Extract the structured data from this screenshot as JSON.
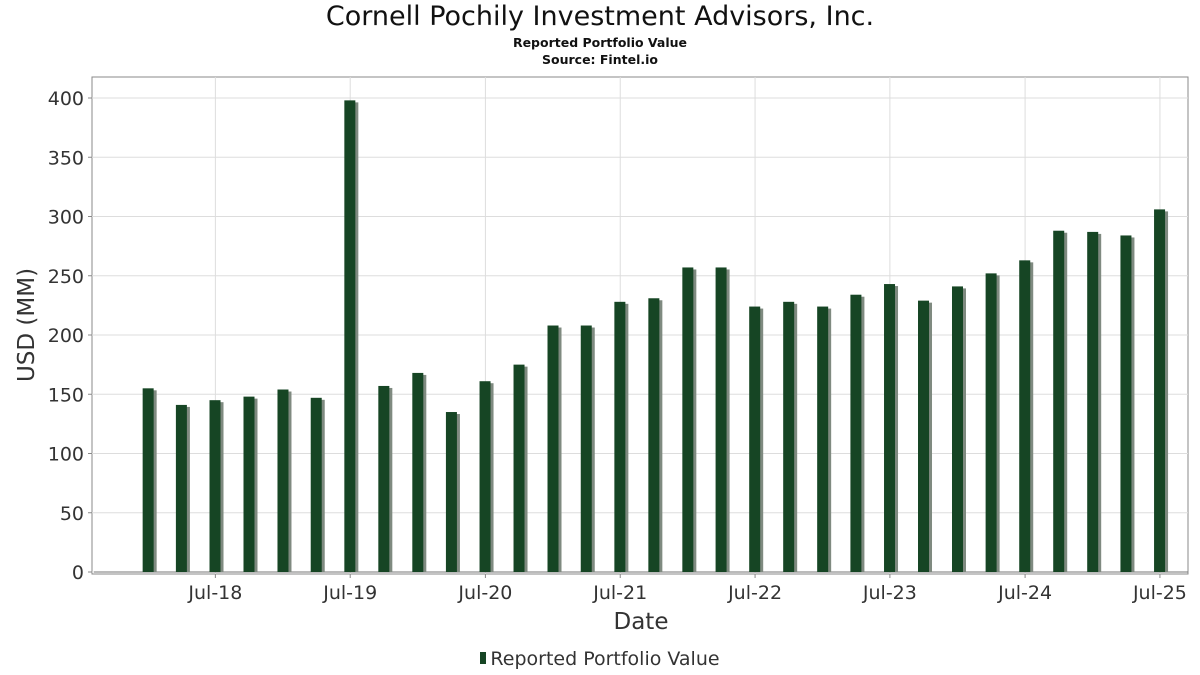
{
  "title": "Cornell Pochily Investment Advisors, Inc.",
  "subtitle": "Reported Portfolio Value",
  "source": "Source: Fintel.io",
  "colors": {
    "bar": "#164524",
    "bar_shadow": "#7f8a80",
    "grid": "#dddddd"
  },
  "chart_data": {
    "type": "bar",
    "title": "Cornell Pochily Investment Advisors, Inc.",
    "subtitle": "Reported Portfolio Value",
    "xlabel": "Date",
    "ylabel": "USD (MM)",
    "ylim": [
      0,
      420
    ],
    "yticks": [
      0,
      50,
      100,
      150,
      200,
      250,
      300,
      350,
      400
    ],
    "xlim": [
      "2017-08-01",
      "2025-09-15"
    ],
    "xticks": [
      {
        "label": "Jul-18",
        "date": "2018-07-01"
      },
      {
        "label": "Jul-19",
        "date": "2019-07-01"
      },
      {
        "label": "Jul-20",
        "date": "2020-07-01"
      },
      {
        "label": "Jul-21",
        "date": "2021-07-01"
      },
      {
        "label": "Jul-22",
        "date": "2022-07-01"
      },
      {
        "label": "Jul-23",
        "date": "2023-07-01"
      },
      {
        "label": "Jul-24",
        "date": "2024-07-01"
      },
      {
        "label": "Jul-25",
        "date": "2025-07-01"
      }
    ],
    "grid": true,
    "legend_position": "bottom",
    "series": [
      {
        "name": "Reported Portfolio Value",
        "points": [
          {
            "date": "2017-12-31",
            "value": 155
          },
          {
            "date": "2018-03-31",
            "value": 141
          },
          {
            "date": "2018-06-30",
            "value": 145
          },
          {
            "date": "2018-09-30",
            "value": 148
          },
          {
            "date": "2018-12-31",
            "value": 154
          },
          {
            "date": "2019-03-31",
            "value": 147
          },
          {
            "date": "2019-06-30",
            "value": 398
          },
          {
            "date": "2019-09-30",
            "value": 157
          },
          {
            "date": "2019-12-31",
            "value": 168
          },
          {
            "date": "2020-03-31",
            "value": 135
          },
          {
            "date": "2020-06-30",
            "value": 161
          },
          {
            "date": "2020-09-30",
            "value": 175
          },
          {
            "date": "2020-12-31",
            "value": 208
          },
          {
            "date": "2021-03-31",
            "value": 208
          },
          {
            "date": "2021-06-30",
            "value": 228
          },
          {
            "date": "2021-09-30",
            "value": 231
          },
          {
            "date": "2021-12-31",
            "value": 257
          },
          {
            "date": "2022-03-31",
            "value": 257
          },
          {
            "date": "2022-06-30",
            "value": 224
          },
          {
            "date": "2022-09-30",
            "value": 228
          },
          {
            "date": "2022-12-31",
            "value": 224
          },
          {
            "date": "2023-03-31",
            "value": 234
          },
          {
            "date": "2023-06-30",
            "value": 243
          },
          {
            "date": "2023-09-30",
            "value": 229
          },
          {
            "date": "2023-12-31",
            "value": 241
          },
          {
            "date": "2024-03-31",
            "value": 252
          },
          {
            "date": "2024-06-30",
            "value": 263
          },
          {
            "date": "2024-09-30",
            "value": 288
          },
          {
            "date": "2024-12-31",
            "value": 287
          },
          {
            "date": "2025-03-31",
            "value": 284
          },
          {
            "date": "2025-06-30",
            "value": 306
          }
        ]
      }
    ]
  }
}
